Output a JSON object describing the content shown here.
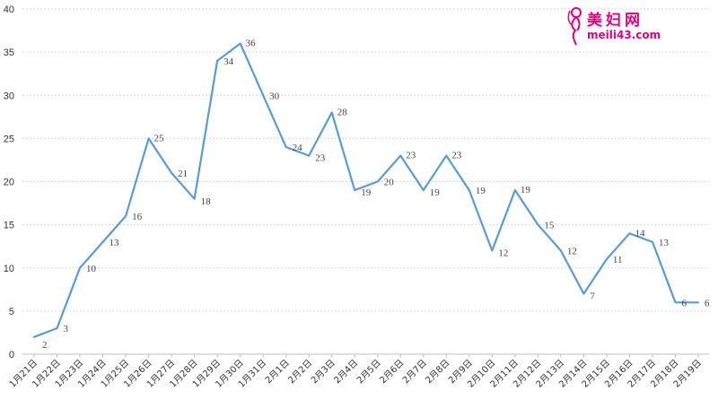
{
  "chart_data": {
    "type": "line",
    "title": "",
    "xlabel": "",
    "ylabel": "",
    "ylim": [
      0,
      40
    ],
    "yticks": [
      0,
      5,
      10,
      15,
      20,
      25,
      30,
      35,
      40
    ],
    "grid": true,
    "legend": "none",
    "categories": [
      "1月21日",
      "1月22日",
      "1月23日",
      "1月24日",
      "1月25日",
      "1月26日",
      "1月27日",
      "1月28日",
      "1月29日",
      "1月30日",
      "1月31日",
      "2月1日",
      "2月2日",
      "2月3日",
      "2月4日",
      "2月5日",
      "2月6日",
      "2月7日",
      "2月8日",
      "2月9日",
      "2月10日",
      "2月11日",
      "2月12日",
      "2月13日",
      "2月14日",
      "2月15日",
      "2月16日",
      "2月17日",
      "2月18日",
      "2月19日"
    ],
    "series": [
      {
        "values": [
          2,
          3,
          10,
          13,
          16,
          25,
          21,
          18,
          34,
          36,
          30,
          24,
          23,
          28,
          19,
          20,
          23,
          19,
          23,
          19,
          12,
          19,
          15,
          12,
          7,
          11,
          14,
          13,
          6,
          6
        ]
      }
    ],
    "line_color": "#5b9bd5"
  },
  "watermark": {
    "title": "美妇网",
    "url": "meili43.com",
    "color": "#e4007f"
  }
}
